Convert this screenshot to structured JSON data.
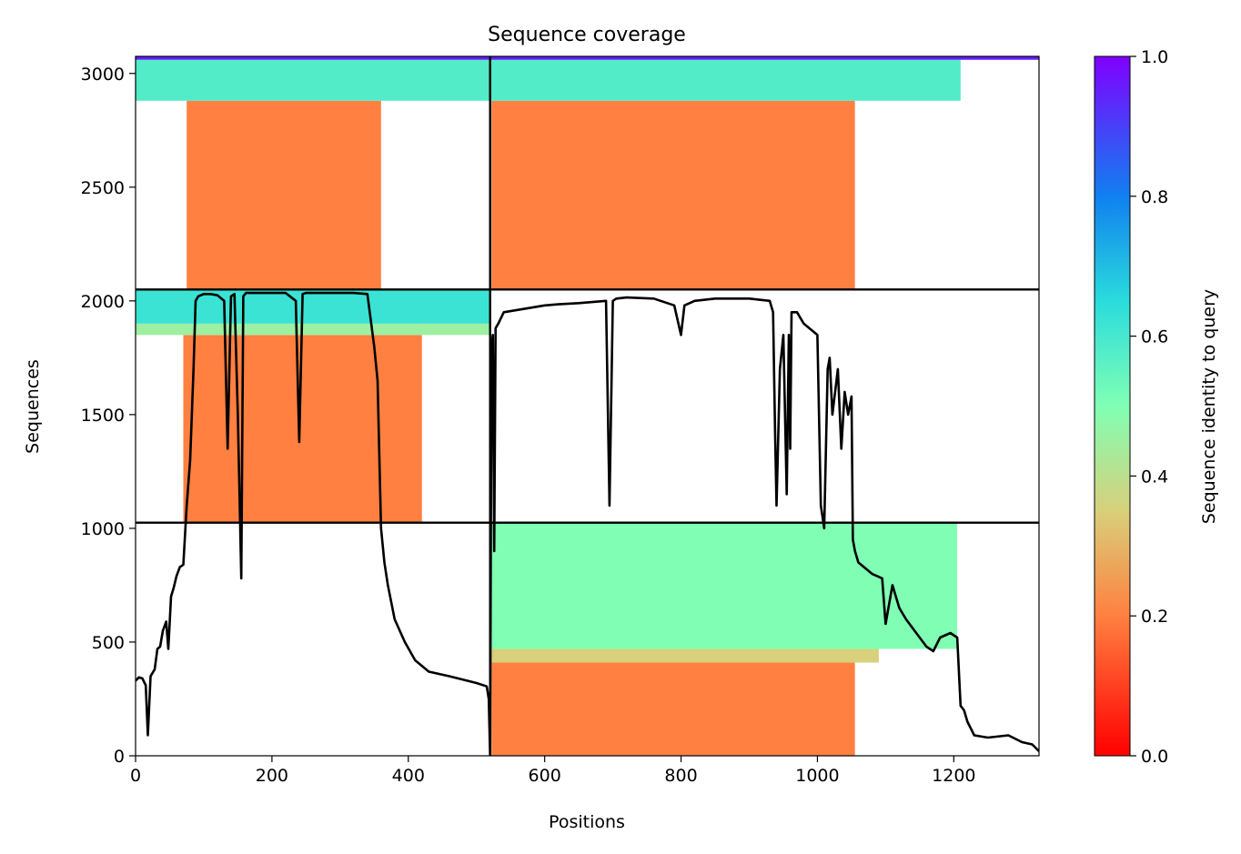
{
  "chart_data": {
    "type": "heatmap",
    "title": "Sequence coverage",
    "xlabel": "Positions",
    "ylabel": "Sequences",
    "xlim": [
      0,
      1325
    ],
    "ylim": [
      0,
      3075
    ],
    "xticks": [
      0,
      200,
      400,
      600,
      800,
      1000,
      1200
    ],
    "yticks": [
      0,
      500,
      1000,
      1500,
      2000,
      2500,
      3000
    ],
    "xtick_labels": [
      "0",
      "200",
      "400",
      "600",
      "800",
      "1000",
      "1200"
    ],
    "ytick_labels": [
      "0",
      "500",
      "1000",
      "1500",
      "2000",
      "2500",
      "3000"
    ],
    "colorbar": {
      "label": "Sequence identity to query",
      "range": [
        0.0,
        1.0
      ],
      "ticks": [
        0.0,
        0.2,
        0.4,
        0.6,
        0.8,
        1.0
      ],
      "tick_labels": [
        "0.0",
        "0.2",
        "0.4",
        "0.6",
        "0.8",
        "1.0"
      ],
      "colormap": "rainbow_r"
    },
    "divider_lines": {
      "vertical_x": 520,
      "horizontal_y": [
        1025,
        2050
      ]
    },
    "blocks": [
      {
        "name": "block-bottom-right",
        "x_range": [
          522,
          1210
        ],
        "y_range": [
          0,
          1025
        ],
        "bands": [
          {
            "y": [
              0,
              410
            ],
            "x": [
              522,
              1055
            ],
            "identity": 0.2
          },
          {
            "y": [
              410,
              470
            ],
            "x": [
              522,
              1090
            ],
            "identity": 0.35
          },
          {
            "y": [
              470,
              1025
            ],
            "x": [
              522,
              1205
            ],
            "identity": 0.5
          }
        ]
      },
      {
        "name": "block-middle-left",
        "x_range": [
          0,
          425
        ],
        "y_range": [
          1025,
          2050
        ],
        "bands": [
          {
            "y": [
              1025,
              1850
            ],
            "x": [
              70,
              420
            ],
            "identity": 0.2
          },
          {
            "y": [
              1850,
              1900
            ],
            "x": [
              0,
              520
            ],
            "identity": 0.45
          },
          {
            "y": [
              1900,
              2050
            ],
            "x": [
              0,
              520
            ],
            "identity": 0.62
          }
        ]
      },
      {
        "name": "block-top-left",
        "x_range": [
          25,
          415
        ],
        "y_range": [
          2050,
          2900
        ],
        "bands": [
          {
            "y": [
              2050,
              2880
            ],
            "x": [
              75,
              360
            ],
            "identity": 0.2
          }
        ]
      },
      {
        "name": "block-top-right",
        "x_range": [
          522,
          1325
        ],
        "y_range": [
          2050,
          3075
        ],
        "bands": [
          {
            "y": [
              2050,
              2880
            ],
            "x": [
              522,
              1055
            ],
            "identity": 0.2
          },
          {
            "y": [
              2880,
              3060
            ],
            "x": [
              0,
              1210
            ],
            "identity": 0.58
          },
          {
            "y": [
              3060,
              3075
            ],
            "x": [
              0,
              1325
            ],
            "identity": 0.95
          }
        ]
      }
    ],
    "coverage_line": {
      "name": "coverage",
      "x": [
        0,
        5,
        10,
        15,
        18,
        22,
        28,
        32,
        36,
        40,
        45,
        48,
        52,
        56,
        60,
        65,
        70,
        75,
        80,
        85,
        88,
        92,
        100,
        110,
        120,
        130,
        135,
        140,
        145,
        150,
        155,
        158,
        162,
        170,
        180,
        200,
        220,
        235,
        240,
        245,
        250,
        280,
        320,
        340,
        350,
        355,
        360,
        365,
        370,
        380,
        395,
        410,
        430,
        460,
        500,
        515,
        518,
        520,
        522,
        524,
        526,
        528,
        532,
        540,
        560,
        580,
        600,
        620,
        650,
        690,
        695,
        700,
        705,
        720,
        760,
        790,
        800,
        805,
        820,
        850,
        900,
        930,
        935,
        938,
        940,
        945,
        950,
        955,
        958,
        960,
        962,
        970,
        980,
        1000,
        1005,
        1010,
        1015,
        1018,
        1022,
        1030,
        1035,
        1040,
        1045,
        1050,
        1052,
        1055,
        1060,
        1080,
        1095,
        1100,
        1110,
        1120,
        1130,
        1150,
        1160,
        1170,
        1180,
        1195,
        1205,
        1210,
        1215,
        1220,
        1230,
        1250,
        1280,
        1300,
        1315,
        1325
      ],
      "y": [
        330,
        345,
        340,
        310,
        90,
        350,
        380,
        470,
        480,
        550,
        590,
        470,
        700,
        740,
        790,
        830,
        840,
        1100,
        1300,
        1700,
        2000,
        2020,
        2030,
        2030,
        2025,
        2000,
        1350,
        2020,
        2030,
        1500,
        780,
        2020,
        2035,
        2035,
        2035,
        2035,
        2035,
        2000,
        1380,
        2030,
        2035,
        2035,
        2035,
        2030,
        1800,
        1650,
        1000,
        850,
        750,
        600,
        500,
        420,
        370,
        350,
        320,
        305,
        250,
        0,
        1800,
        1850,
        900,
        1880,
        1900,
        1950,
        1960,
        1970,
        1980,
        1985,
        1990,
        2000,
        1100,
        2000,
        2010,
        2015,
        2010,
        1980,
        1850,
        1980,
        2000,
        2010,
        2010,
        2000,
        1950,
        1400,
        1100,
        1700,
        1850,
        1150,
        1850,
        1350,
        1950,
        1950,
        1900,
        1850,
        1100,
        1000,
        1700,
        1750,
        1500,
        1700,
        1350,
        1600,
        1500,
        1580,
        950,
        900,
        850,
        800,
        780,
        580,
        750,
        650,
        600,
        520,
        480,
        460,
        520,
        540,
        520,
        220,
        200,
        150,
        90,
        80,
        90,
        60,
        50,
        20
      ]
    }
  }
}
